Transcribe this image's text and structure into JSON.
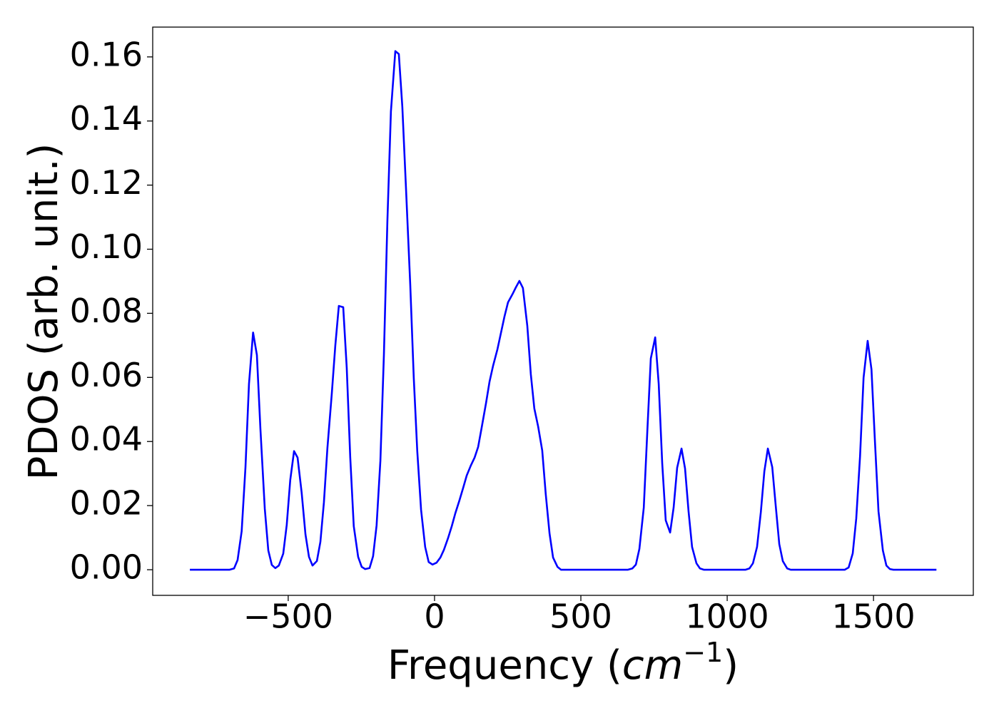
{
  "chart_data": {
    "type": "line",
    "x_label": {
      "text": "Frequency (",
      "unit": "cm",
      "exponent": "−1",
      "close": ")"
    },
    "y_label": "PDOS (arb. unit.)",
    "xlim": [
      -963,
      1841
    ],
    "ylim": [
      -0.008,
      0.1693
    ],
    "xticks": [
      {
        "value": -500,
        "label": "−500"
      },
      0,
      500,
      1000,
      1500
    ],
    "yticks": [
      {
        "value": 0,
        "label": "0.00"
      },
      {
        "value": 0.02,
        "label": "0.02"
      },
      {
        "value": 0.04,
        "label": "0.04"
      },
      {
        "value": 0.06,
        "label": "0.06"
      },
      {
        "value": 0.08,
        "label": "0.08"
      },
      {
        "value": 0.1,
        "label": "0.10"
      },
      {
        "value": 0.12,
        "label": "0.12"
      },
      {
        "value": 0.14,
        "label": "0.14"
      },
      {
        "value": 0.16,
        "label": "0.16"
      }
    ],
    "grid": false,
    "x": [
      -836,
      -700,
      -685,
      -673,
      -659,
      -646,
      -634,
      -620,
      -607,
      -595,
      -580,
      -568,
      -556,
      -544,
      -532,
      -517,
      -505,
      -493,
      -480,
      -468,
      -454,
      -441,
      -429,
      -417,
      -402,
      -390,
      -378,
      -366,
      -351,
      -339,
      -327,
      -312,
      -300,
      -288,
      -276,
      -261,
      -249,
      -237,
      -222,
      -210,
      -198,
      -185,
      -173,
      -161,
      -149,
      -134,
      -122,
      -110,
      -98,
      -83,
      -71,
      -59,
      -46,
      -32,
      -20,
      -7,
      7,
      20,
      32,
      46,
      59,
      71,
      85,
      98,
      110,
      124,
      137,
      149,
      161,
      176,
      188,
      200,
      215,
      227,
      239,
      251,
      266,
      278,
      290,
      302,
      317,
      329,
      341,
      354,
      368,
      380,
      393,
      405,
      420,
      432,
      661,
      676,
      688,
      700,
      715,
      727,
      739,
      754,
      766,
      778,
      790,
      805,
      817,
      829,
      844,
      856,
      868,
      880,
      895,
      907,
      920,
      1063,
      1076,
      1088,
      1102,
      1115,
      1127,
      1139,
      1154,
      1166,
      1178,
      1190,
      1205,
      1217,
      1402,
      1415,
      1429,
      1441,
      1454,
      1466,
      1480,
      1493,
      1505,
      1517,
      1532,
      1544,
      1556,
      1568,
      1715
    ],
    "series": [
      {
        "color": "#0000ff",
        "values": [
          0,
          0,
          0.0004,
          0.003,
          0.012,
          0.032,
          0.058,
          0.074,
          0.067,
          0.044,
          0.019,
          0.006,
          0.0015,
          0.0005,
          0.0013,
          0.005,
          0.014,
          0.028,
          0.037,
          0.035,
          0.024,
          0.011,
          0.004,
          0.0013,
          0.0027,
          0.0087,
          0.021,
          0.038,
          0.055,
          0.07,
          0.0823,
          0.0819,
          0.063,
          0.035,
          0.0136,
          0.004,
          0.0009,
          0.0002,
          0.0005,
          0.0042,
          0.0138,
          0.034,
          0.067,
          0.109,
          0.143,
          0.1618,
          0.1609,
          0.1444,
          0.12,
          0.089,
          0.06,
          0.037,
          0.0187,
          0.0071,
          0.0024,
          0.0016,
          0.0022,
          0.0038,
          0.0062,
          0.0098,
          0.0136,
          0.0176,
          0.0216,
          0.0256,
          0.0294,
          0.0325,
          0.035,
          0.0383,
          0.0443,
          0.052,
          0.0587,
          0.0636,
          0.0688,
          0.0739,
          0.079,
          0.0834,
          0.0859,
          0.0881,
          0.0901,
          0.0879,
          0.0761,
          0.061,
          0.0503,
          0.0447,
          0.0372,
          0.0236,
          0.0113,
          0.0038,
          0.0009,
          0,
          0,
          0.0004,
          0.0016,
          0.0065,
          0.0194,
          0.043,
          0.0659,
          0.0725,
          0.058,
          0.0332,
          0.0154,
          0.0116,
          0.0194,
          0.0318,
          0.0378,
          0.0316,
          0.0182,
          0.0071,
          0.002,
          0.0004,
          0,
          0,
          0.0004,
          0.002,
          0.0071,
          0.018,
          0.0307,
          0.0378,
          0.032,
          0.0198,
          0.008,
          0.0027,
          0.0004,
          0,
          0,
          0.0007,
          0.0051,
          0.016,
          0.0354,
          0.0599,
          0.0714,
          0.0625,
          0.0398,
          0.0182,
          0.006,
          0.0013,
          0.0002,
          0,
          0
        ]
      }
    ]
  }
}
